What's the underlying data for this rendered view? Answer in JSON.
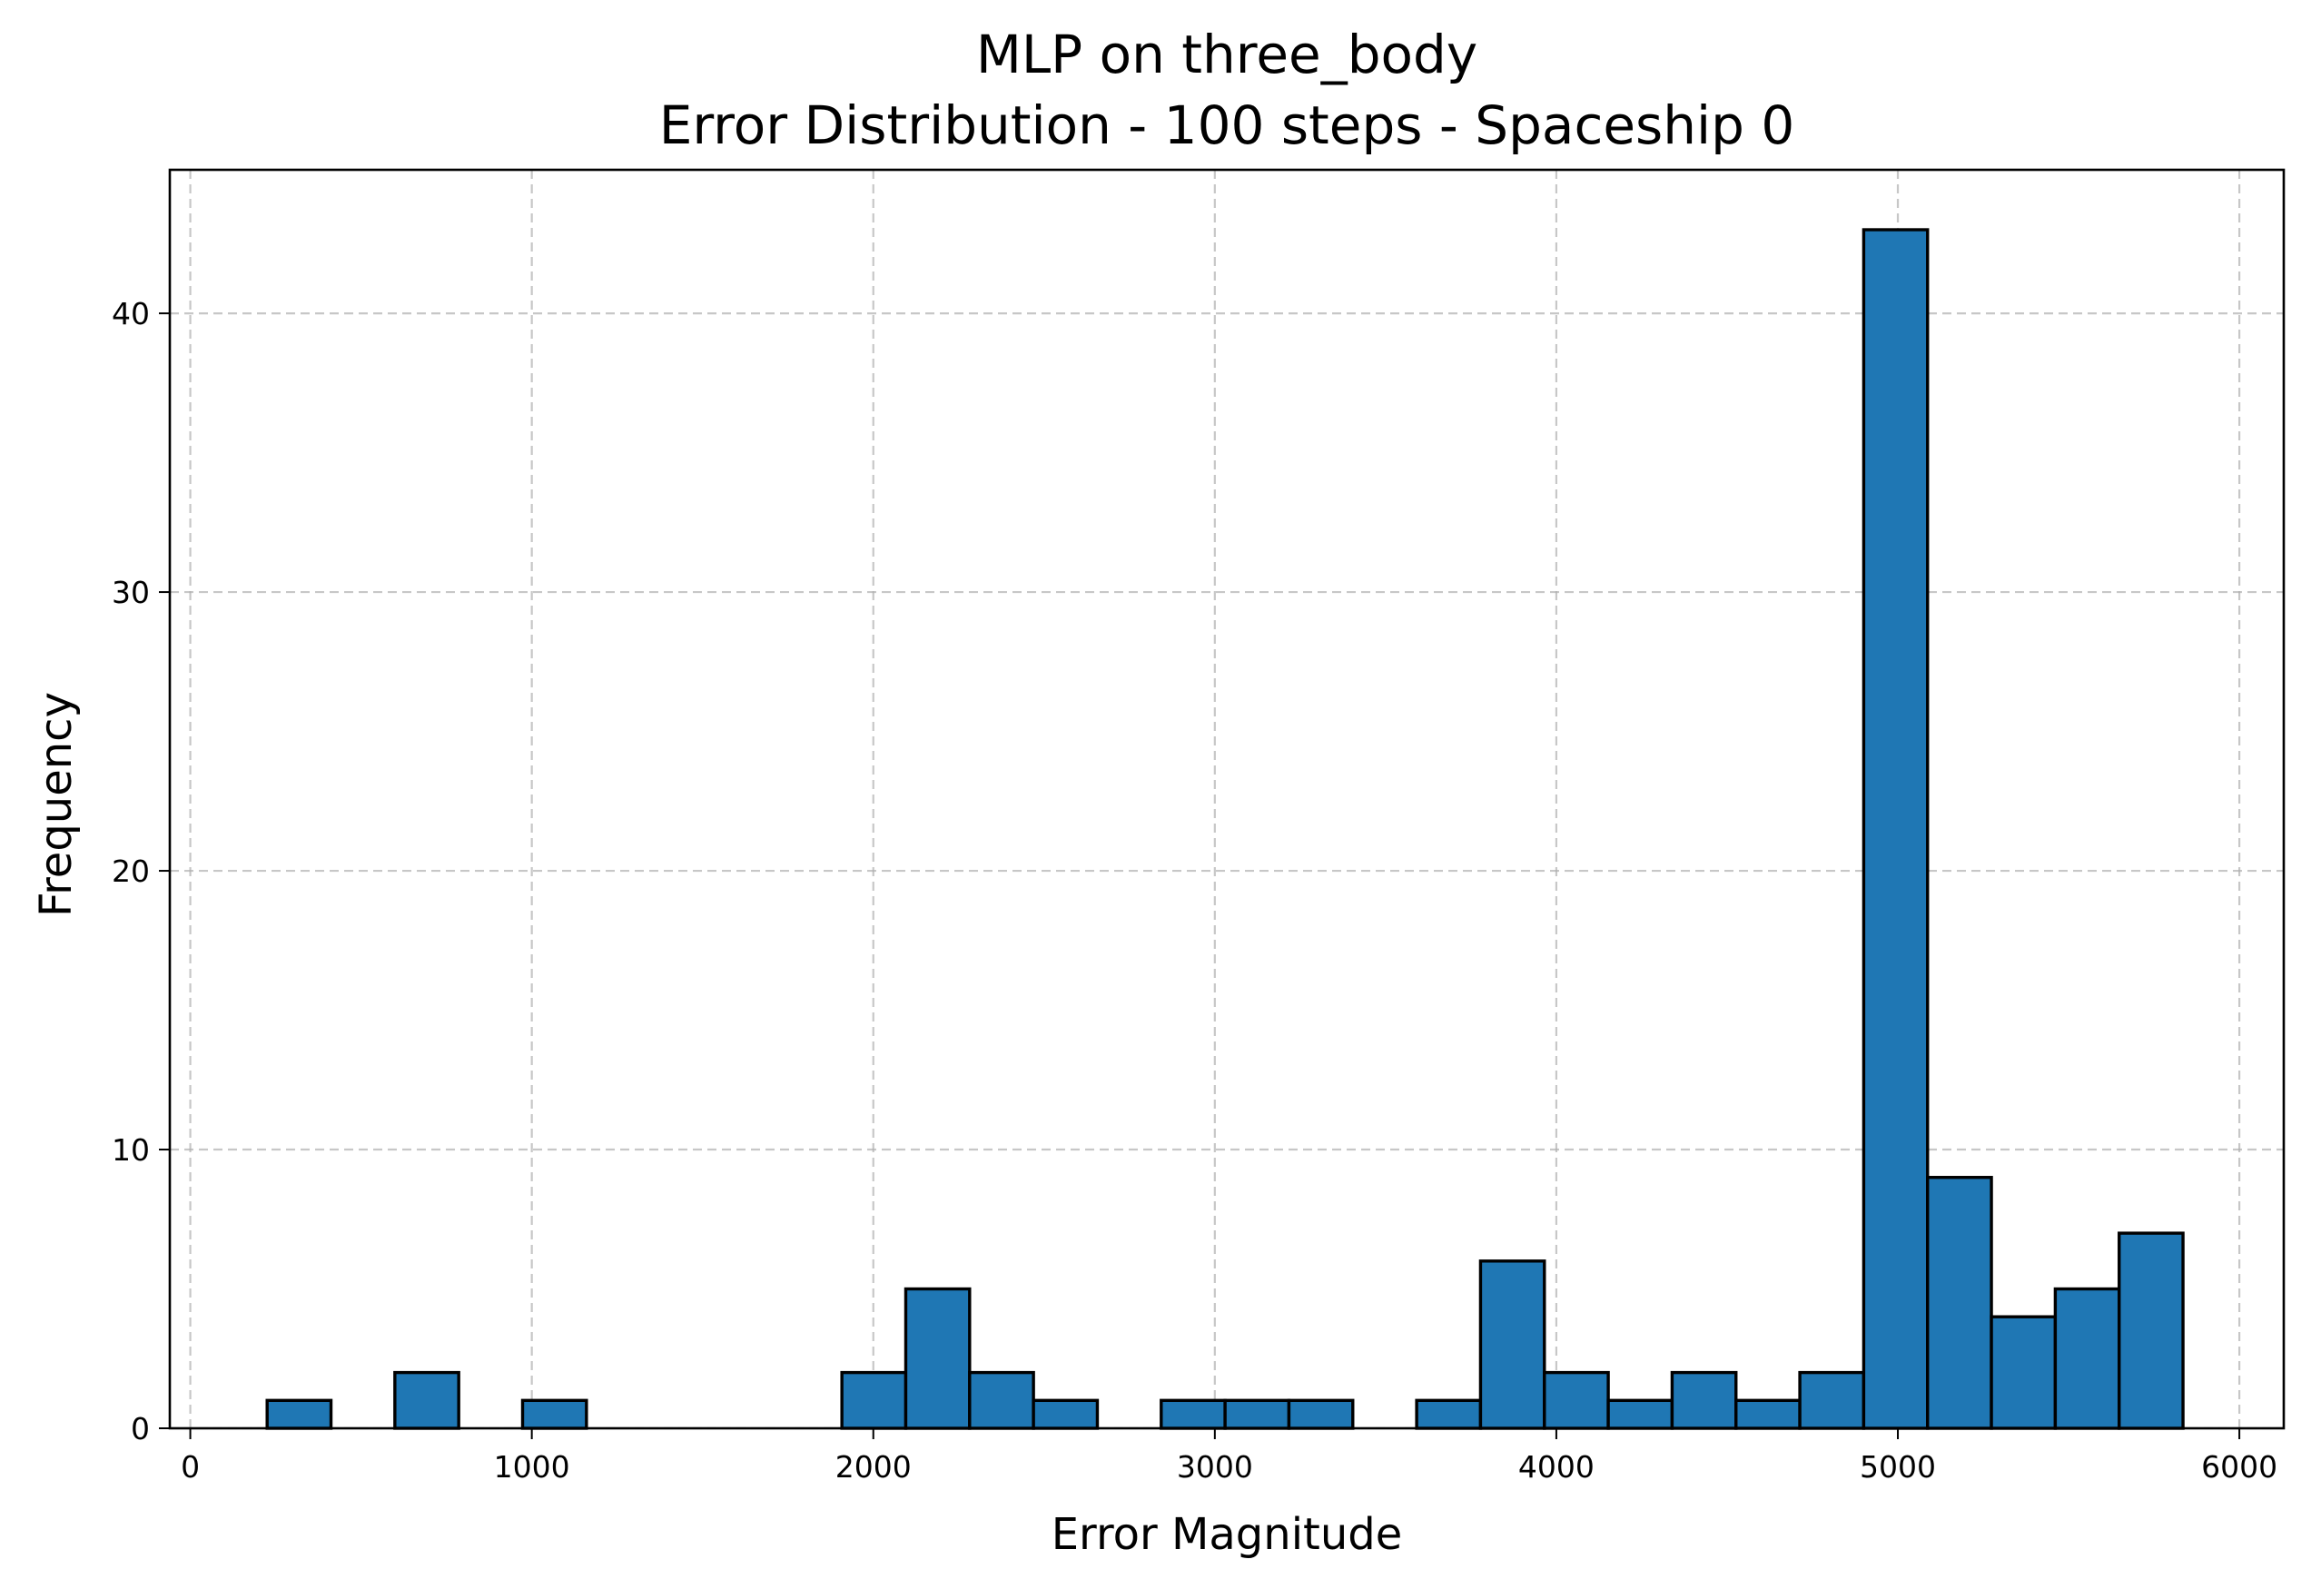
{
  "chart_data": {
    "type": "bar",
    "title": "MLP on three_body",
    "subtitle": "Error Distribution - 100 steps - Spaceship 0",
    "xlabel": "Error Magnitude",
    "ylabel": "Frequency",
    "xlim": [
      -60,
      6130
    ],
    "ylim": [
      0,
      45.15
    ],
    "xticks": [
      0,
      1000,
      2000,
      3000,
      4000,
      5000,
      6000
    ],
    "yticks": [
      0,
      10,
      20,
      30,
      40
    ],
    "grid": true,
    "bar_color": "#1f77b4",
    "edge_color": "#000000",
    "bins": [
      {
        "start": 225,
        "end": 412,
        "count": 1
      },
      {
        "start": 412,
        "end": 599,
        "count": 0
      },
      {
        "start": 599,
        "end": 786,
        "count": 2
      },
      {
        "start": 786,
        "end": 973,
        "count": 0
      },
      {
        "start": 973,
        "end": 1160,
        "count": 1
      },
      {
        "start": 1160,
        "end": 1347,
        "count": 0
      },
      {
        "start": 1347,
        "end": 1534,
        "count": 0
      },
      {
        "start": 1534,
        "end": 1721,
        "count": 0
      },
      {
        "start": 1721,
        "end": 1908,
        "count": 0
      },
      {
        "start": 1908,
        "end": 2095,
        "count": 2
      },
      {
        "start": 2095,
        "end": 2282,
        "count": 5
      },
      {
        "start": 2282,
        "end": 2469,
        "count": 2
      },
      {
        "start": 2469,
        "end": 2656,
        "count": 1
      },
      {
        "start": 2656,
        "end": 2843,
        "count": 0
      },
      {
        "start": 2843,
        "end": 3030,
        "count": 1
      },
      {
        "start": 3030,
        "end": 3217,
        "count": 1
      },
      {
        "start": 3217,
        "end": 3404,
        "count": 1
      },
      {
        "start": 3404,
        "end": 3591,
        "count": 0
      },
      {
        "start": 3591,
        "end": 3778,
        "count": 1
      },
      {
        "start": 3778,
        "end": 3965,
        "count": 6
      },
      {
        "start": 3965,
        "end": 4152,
        "count": 2
      },
      {
        "start": 4152,
        "end": 4339,
        "count": 1
      },
      {
        "start": 4339,
        "end": 4526,
        "count": 2
      },
      {
        "start": 4526,
        "end": 4713,
        "count": 1
      },
      {
        "start": 4713,
        "end": 4900,
        "count": 2
      },
      {
        "start": 4900,
        "end": 5087,
        "count": 43
      },
      {
        "start": 5087,
        "end": 5274,
        "count": 9
      },
      {
        "start": 5274,
        "end": 5461,
        "count": 4
      },
      {
        "start": 5461,
        "end": 5648,
        "count": 5
      },
      {
        "start": 5648,
        "end": 5835,
        "count": 7
      }
    ]
  }
}
